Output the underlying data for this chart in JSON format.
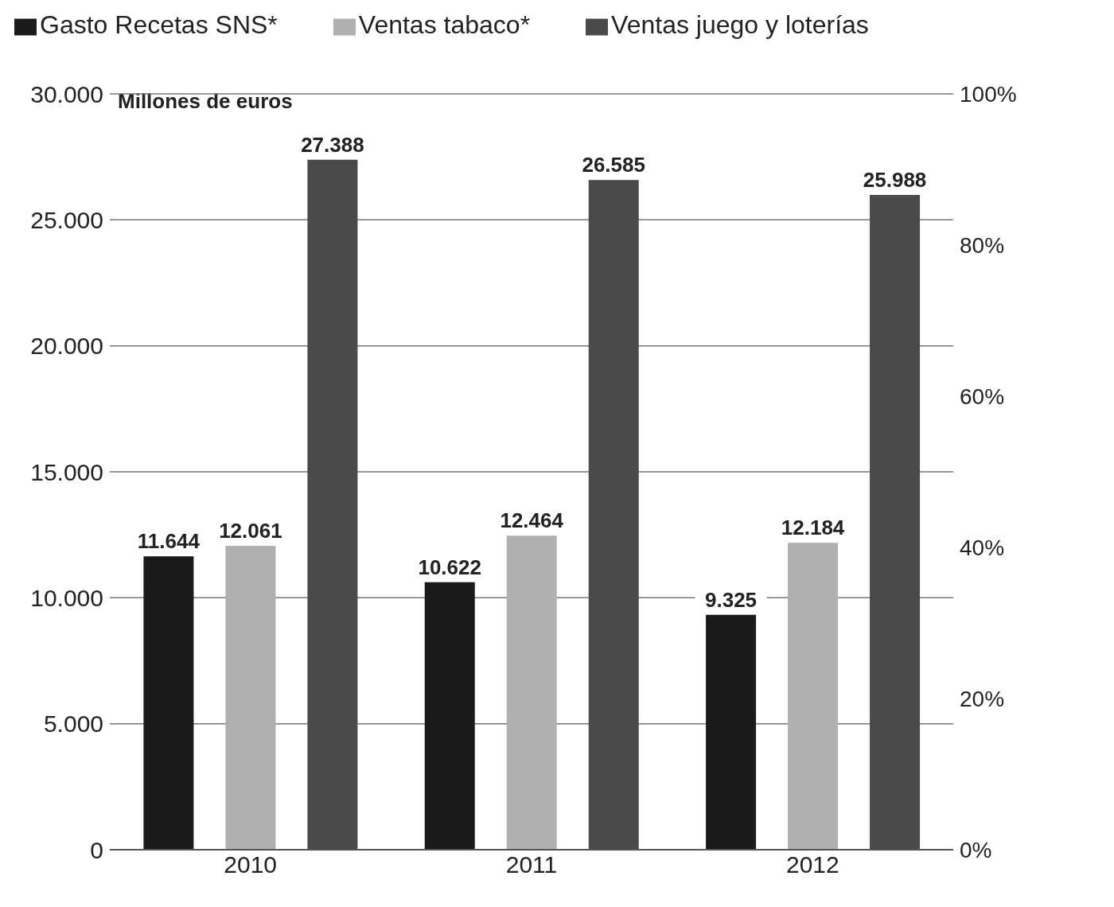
{
  "chart_data": {
    "type": "bar",
    "ylabel": "Millones de euros",
    "categories": [
      "2010",
      "2011",
      "2012"
    ],
    "series": [
      {
        "name": "Gasto Recetas SNS*",
        "color": "#1a1a1a",
        "values": [
          11644,
          10622,
          9325
        ],
        "value_labels": [
          "11.644",
          "10.622",
          "9.325"
        ]
      },
      {
        "name": "Ventas tabaco*",
        "color": "#b0b0b0",
        "values": [
          12061,
          12464,
          12184
        ],
        "value_labels": [
          "12.061",
          "12.464",
          "12.184"
        ]
      },
      {
        "name": "Ventas juego y loterías",
        "color": "#4a4a4a",
        "values": [
          27388,
          26585,
          25988
        ],
        "value_labels": [
          "27.388",
          "26.585",
          "25.988"
        ]
      }
    ],
    "ylim": [
      0,
      30000
    ],
    "yticks": [
      {
        "value": 0,
        "label": "0"
      },
      {
        "value": 5000,
        "label": "5.000"
      },
      {
        "value": 10000,
        "label": "10.000"
      },
      {
        "value": 15000,
        "label": "15.000"
      },
      {
        "value": 20000,
        "label": "20.000"
      },
      {
        "value": 25000,
        "label": "25.000"
      },
      {
        "value": 30000,
        "label": "30.000"
      }
    ],
    "y2lim": [
      0,
      100
    ],
    "y2ticks": [
      {
        "value": 0,
        "label": "0%"
      },
      {
        "value": 20,
        "label": "20%"
      },
      {
        "value": 40,
        "label": "40%"
      },
      {
        "value": 60,
        "label": "60%"
      },
      {
        "value": 80,
        "label": "80%"
      },
      {
        "value": 100,
        "label": "100%"
      }
    ],
    "grid": "y",
    "legend": "top left"
  }
}
